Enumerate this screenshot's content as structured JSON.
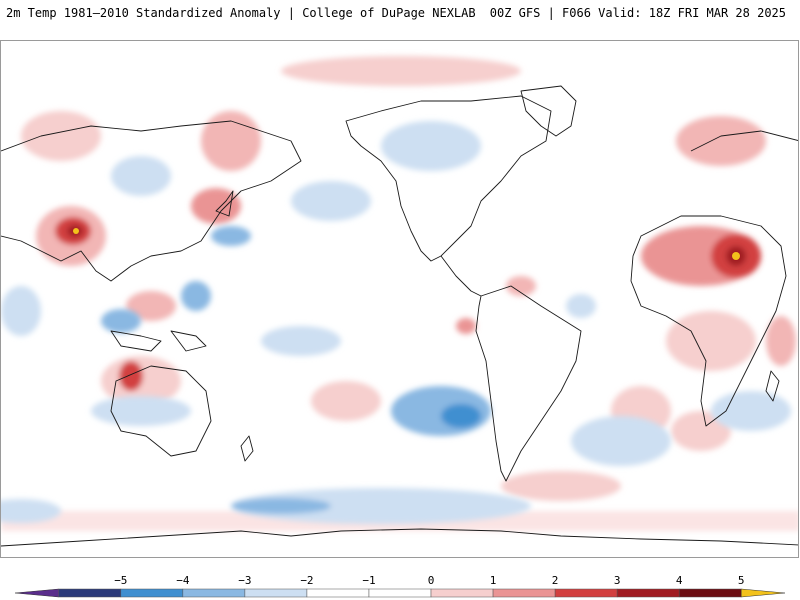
{
  "header": {
    "title_left": "2m Temp 1981–2010 Standardized Anomaly | College of DuPage NEXLAB",
    "title_right": "00Z GFS | F066 Valid: 18Z FRI MAR 28 2025"
  },
  "colorbar": {
    "tick_labels": [
      "−5",
      "−4",
      "−3",
      "−2",
      "−1",
      "0",
      "1",
      "2",
      "3",
      "4",
      "5"
    ],
    "colors": [
      "#2a3a7a",
      "#3f8fd0",
      "#8ab8e2",
      "#cddff2",
      "#ffffff",
      "#ffffff",
      "#f6cfce",
      "#ea9494",
      "#d24040",
      "#a01c22",
      "#6b0d12"
    ],
    "min_arrow_color": "#5a2d8c",
    "max_arrow_color": "#f2c21c"
  },
  "map": {
    "projection": "cylindrical",
    "land_outline_color": "#1a1a1a",
    "anomaly_warm_color": "#e57373",
    "anomaly_cold_color": "#6fa8dc"
  }
}
